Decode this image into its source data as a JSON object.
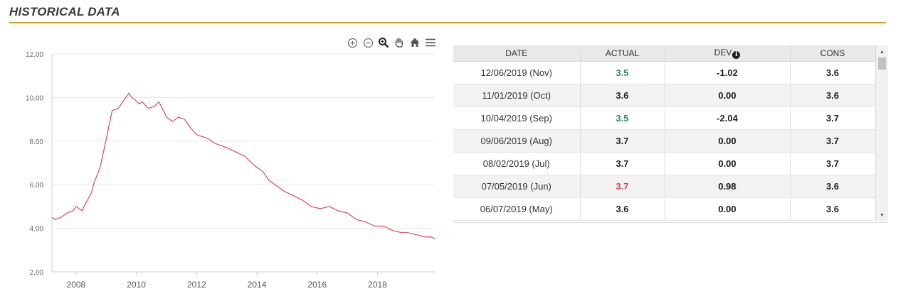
{
  "header": {
    "title": "HISTORICAL DATA"
  },
  "colors": {
    "accent": "#d4a12a",
    "line": "#d94a5a",
    "positive": "#2e8b57",
    "negative": "#d04545"
  },
  "toolbar": {
    "tools": [
      {
        "name": "zoom-in-icon",
        "glyph": "⊕"
      },
      {
        "name": "zoom-out-icon",
        "glyph": "⊖"
      },
      {
        "name": "magnify-icon",
        "glyph": "🔍"
      },
      {
        "name": "pan-hand-icon",
        "glyph": "✋"
      },
      {
        "name": "home-icon",
        "glyph": "⌂"
      },
      {
        "name": "menu-icon",
        "glyph": "≡"
      }
    ]
  },
  "chart_data": {
    "type": "line",
    "title": "",
    "xlabel": "",
    "ylabel": "",
    "xlim": [
      2007.2,
      2019.9
    ],
    "ylim": [
      2,
      12
    ],
    "y_ticks": [
      "2.00",
      "4.00",
      "6.00",
      "8.00",
      "10.00",
      "12.00"
    ],
    "x_ticks": [
      "2008",
      "2010",
      "2012",
      "2014",
      "2016",
      "2018"
    ],
    "grid": true,
    "series": [
      {
        "x": [
          2007.2,
          2007.3,
          2007.5,
          2007.7,
          2007.9,
          2008.0,
          2008.2,
          2008.3,
          2008.5,
          2008.6,
          2008.8,
          2009.0,
          2009.2,
          2009.4,
          2009.6,
          2009.75,
          2009.85,
          2009.95,
          2010.1,
          2010.2,
          2010.4,
          2010.6,
          2010.75,
          2010.9,
          2011.0,
          2011.2,
          2011.4,
          2011.6,
          2011.8,
          2012.0,
          2012.2,
          2012.4,
          2012.6,
          2012.8,
          2013.0,
          2013.3,
          2013.6,
          2013.9,
          2014.2,
          2014.4,
          2014.6,
          2014.9,
          2015.2,
          2015.5,
          2015.8,
          2016.1,
          2016.4,
          2016.7,
          2017.0,
          2017.3,
          2017.6,
          2017.9,
          2018.2,
          2018.5,
          2018.8,
          2019.0,
          2019.3,
          2019.6,
          2019.8,
          2019.9
        ],
        "y": [
          4.5,
          4.4,
          4.5,
          4.7,
          4.8,
          5.0,
          4.8,
          5.1,
          5.6,
          6.1,
          6.8,
          8.1,
          9.4,
          9.5,
          9.9,
          10.2,
          10.0,
          9.9,
          9.7,
          9.8,
          9.5,
          9.6,
          9.8,
          9.4,
          9.1,
          8.9,
          9.1,
          9.0,
          8.6,
          8.3,
          8.2,
          8.1,
          7.9,
          7.8,
          7.7,
          7.5,
          7.3,
          6.9,
          6.6,
          6.2,
          6.0,
          5.7,
          5.5,
          5.3,
          5.0,
          4.9,
          5.0,
          4.8,
          4.7,
          4.4,
          4.3,
          4.1,
          4.1,
          3.9,
          3.8,
          3.8,
          3.7,
          3.6,
          3.6,
          3.5
        ]
      }
    ]
  },
  "table": {
    "headers": {
      "date": "DATE",
      "actual": "ACTUAL",
      "dev": "DEV",
      "cons": "CONS"
    },
    "rows": [
      {
        "date": "12/06/2019 (Nov)",
        "actual": "3.5",
        "dev": "-1.02",
        "cons": "3.6"
      },
      {
        "date": "11/01/2019 (Oct)",
        "actual": "3.6",
        "dev": "0.00",
        "cons": "3.6"
      },
      {
        "date": "10/04/2019 (Sep)",
        "actual": "3.5",
        "dev": "-2.04",
        "cons": "3.7"
      },
      {
        "date": "09/06/2019 (Aug)",
        "actual": "3.7",
        "dev": "0.00",
        "cons": "3.7"
      },
      {
        "date": "08/02/2019 (Jul)",
        "actual": "3.7",
        "dev": "0.00",
        "cons": "3.7"
      },
      {
        "date": "07/05/2019 (Jun)",
        "actual": "3.7",
        "dev": "0.98",
        "cons": "3.6"
      },
      {
        "date": "06/07/2019 (May)",
        "actual": "3.6",
        "dev": "0.00",
        "cons": "3.6"
      }
    ]
  }
}
